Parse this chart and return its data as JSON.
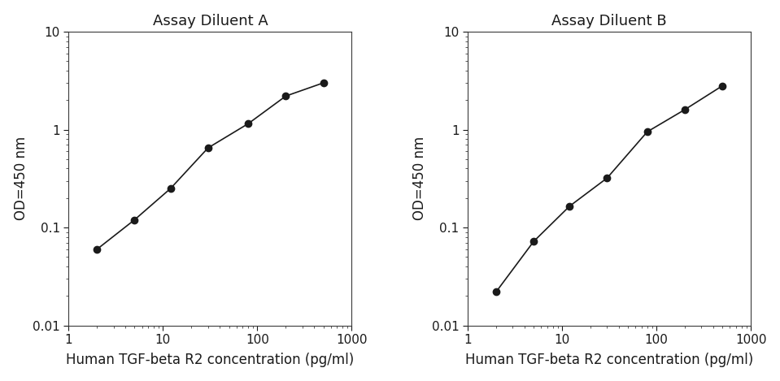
{
  "plot_A": {
    "title": "Assay Diluent A",
    "x": [
      2,
      5,
      12,
      30,
      80,
      200,
      500
    ],
    "y": [
      0.06,
      0.12,
      0.25,
      0.65,
      1.15,
      2.2,
      3.0
    ]
  },
  "plot_B": {
    "title": "Assay Diluent B",
    "x": [
      2,
      5,
      12,
      30,
      80,
      200,
      500
    ],
    "y": [
      0.022,
      0.072,
      0.165,
      0.32,
      0.95,
      1.6,
      2.8
    ]
  },
  "xlabel": "Human TGF-beta R2 concentration (pg/ml)",
  "ylabel": "OD=450 nm",
  "xlim": [
    1,
    1000
  ],
  "ylim": [
    0.01,
    10
  ],
  "line_color": "#1a1a1a",
  "marker": "o",
  "marker_size": 6,
  "marker_color": "#1a1a1a",
  "background_color": "#ffffff",
  "title_fontsize": 13,
  "label_fontsize": 12
}
